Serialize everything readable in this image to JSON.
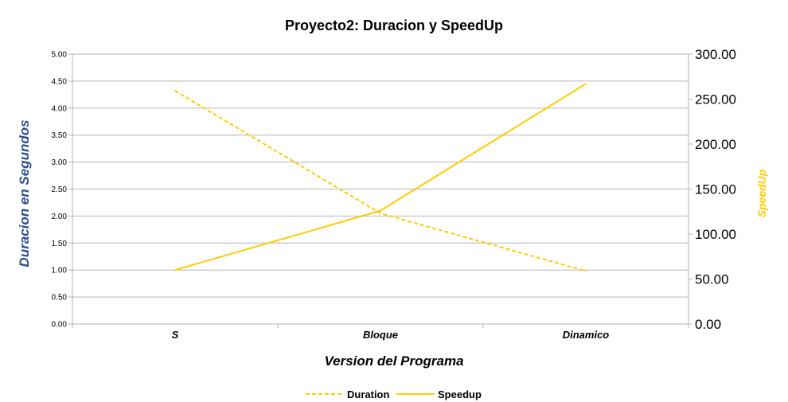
{
  "chart_data": {
    "type": "line",
    "title": "Proyecto2: Duracion y SpeedUp",
    "xlabel": "Version del Programa",
    "ylabel": "Duracion en Segundos",
    "ylabel_right": "SpeedUp",
    "categories": [
      "S",
      "Bloque",
      "Dinamico"
    ],
    "ylim": [
      0,
      5
    ],
    "ylim_right": [
      0,
      300
    ],
    "yticks": [
      "0.00",
      "0.50",
      "1.00",
      "1.50",
      "2.00",
      "2.50",
      "3.00",
      "3.50",
      "4.00",
      "4.50",
      "5.00"
    ],
    "yticks_right": [
      "0.00",
      "50.00",
      "100.00",
      "150.00",
      "200.00",
      "250.00",
      "300.00"
    ],
    "grid": true,
    "legend_position": "bottom",
    "series": [
      {
        "name": "Duration",
        "axis": "left",
        "style": "dashed",
        "values": [
          4.32,
          2.05,
          0.98
        ]
      },
      {
        "name": "Speedup",
        "axis": "right",
        "style": "solid",
        "values": [
          60,
          126,
          267
        ]
      }
    ],
    "colors": {
      "series": "#ffcc00",
      "ylabel_left": "#2e4d8c",
      "ylabel_right": "#ffcc00",
      "grid": "#b3b3b3",
      "axis": "#b3b3b3"
    }
  }
}
